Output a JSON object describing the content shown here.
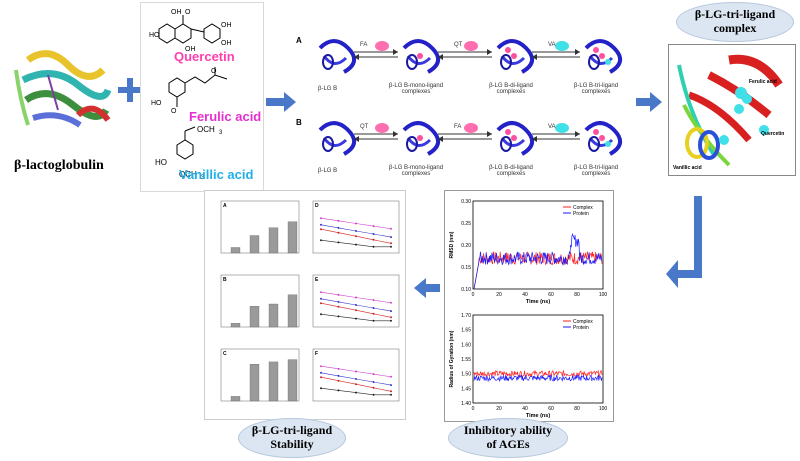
{
  "protein": {
    "label": "β-lactoglobulin"
  },
  "ligands": {
    "quercetin": "Quercetin",
    "ferulic": "Ferulic acid",
    "vanillic": "Vanillic acid"
  },
  "pathways": {
    "a": {
      "tag": "A",
      "steps": [
        "FA",
        "QT",
        "VA"
      ],
      "states": [
        "β-LG B",
        "β-LG B-mono-ligand complexes",
        "β-LG B-di-ligand complexes",
        "β-LG B-tri-ligand complexes"
      ]
    },
    "b": {
      "tag": "B",
      "steps": [
        "QT",
        "FA",
        "VA"
      ],
      "states": [
        "β-LG B",
        "β-LG B-mono-ligand complexes",
        "β-LG B-di-ligand complexes",
        "β-LG B-tri-ligand complexes"
      ]
    }
  },
  "complex": {
    "title": "β-LG-tri-ligand complex",
    "labels": [
      "Ferulic acid",
      "Quercetin",
      "Vanillic acid"
    ]
  },
  "md": {
    "rmsd": {
      "ylabel": "RMSD (nm)",
      "xlabel": "Time (ns)",
      "legend": [
        "Complex",
        "Protein"
      ],
      "yticks": [
        "0.10",
        "0.15",
        "0.20",
        "0.25",
        "0.30"
      ],
      "xticks": [
        "0",
        "20",
        "40",
        "60",
        "80",
        "100"
      ]
    },
    "rg": {
      "ylabel": "Radius of Gyration (nm)",
      "xlabel": "Time (ns)",
      "legend": [
        "Complex",
        "Protein"
      ],
      "yticks": [
        "1.40",
        "1.45",
        "1.50",
        "1.55",
        "1.60",
        "1.65",
        "1.70"
      ],
      "xticks": [
        "0",
        "20",
        "40",
        "60",
        "80",
        "100"
      ]
    },
    "colors": {
      "complex": "#ff2020",
      "protein": "#1a1aff"
    }
  },
  "stability": {
    "bars": [
      {
        "tag": "A",
        "values": [
          12,
          38,
          55,
          68
        ]
      },
      {
        "tag": "B",
        "values": [
          8,
          45,
          50,
          70
        ]
      },
      {
        "tag": "C",
        "values": [
          10,
          80,
          85,
          90
        ]
      }
    ],
    "lines": [
      {
        "tag": "D"
      },
      {
        "tag": "E"
      },
      {
        "tag": "F"
      }
    ]
  },
  "clouds": {
    "stability": "β-LG-tri-ligand Stability",
    "inhibitory": "Inhibitory ability of AGEs"
  }
}
